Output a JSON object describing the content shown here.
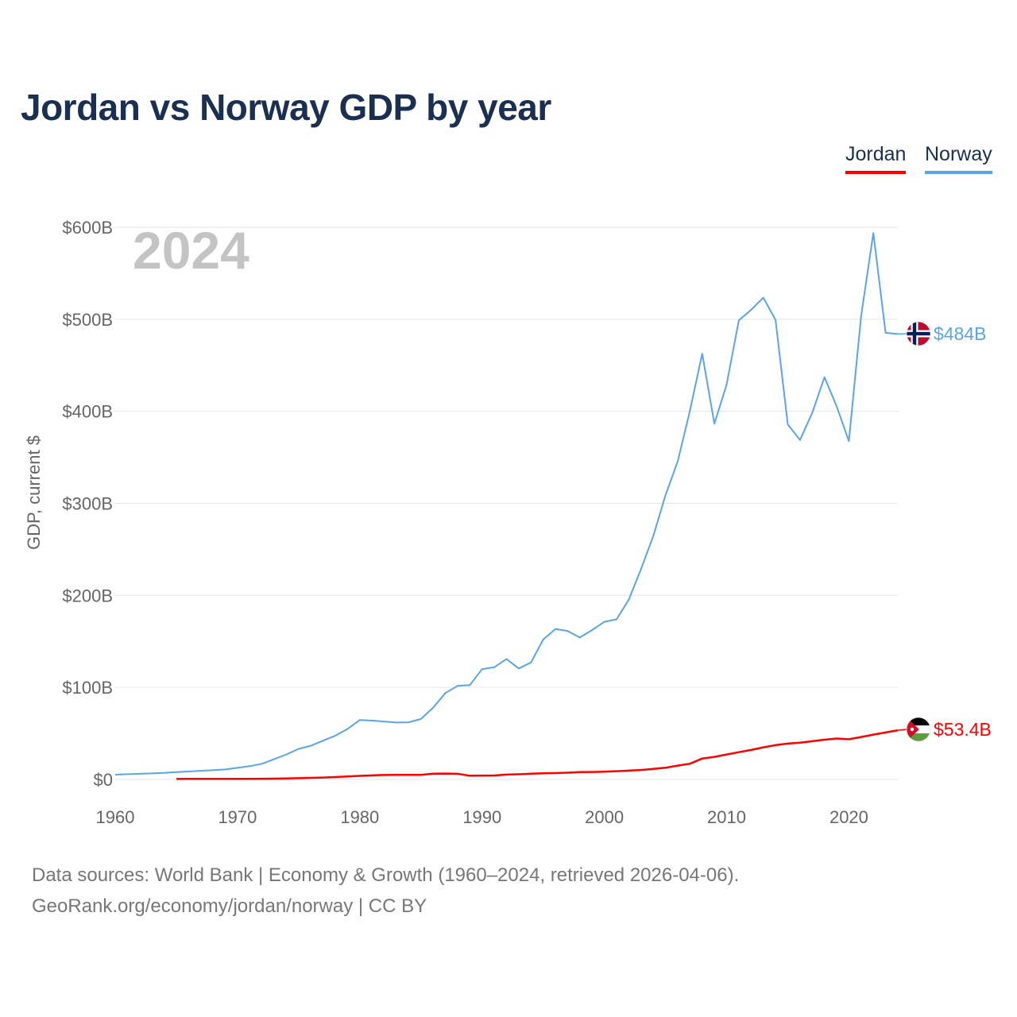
{
  "title": "Jordan vs Norway GDP by year",
  "legend": [
    {
      "label": "Jordan",
      "color": "#ff0000"
    },
    {
      "label": "Norway",
      "color": "#5aa5e6"
    }
  ],
  "footer": {
    "line1": "Data sources: World Bank | Economy & Growth (1960–2024, retrieved 2026-04-06).",
    "line2": "GeoRank.org/economy/jordan/norway | CC BY"
  },
  "chart_data": {
    "type": "line",
    "title": "Jordan vs Norway GDP by year",
    "xlabel": "",
    "ylabel": "GDP, current $",
    "xlim": [
      1960,
      2024
    ],
    "ylim": [
      0,
      600
    ],
    "y_unit": "billion USD",
    "x_ticks": [
      1960,
      1970,
      1980,
      1990,
      2000,
      2010,
      2020
    ],
    "x_tick_labels": [
      "1960",
      "1970",
      "1980",
      "1990",
      "2000",
      "2010",
      "2020"
    ],
    "y_ticks": [
      0,
      100,
      200,
      300,
      400,
      500,
      600
    ],
    "y_tick_labels": [
      "$0",
      "$100B",
      "$200B",
      "$300B",
      "$400B",
      "$500B",
      "$600B"
    ],
    "current_year_label": "2024",
    "grid": true,
    "legend_position": "top-right",
    "series": [
      {
        "name": "Jordan",
        "color": "#ff0000",
        "end_label": "$53.4B",
        "flag": "jordan",
        "x": [
          1965,
          1966,
          1967,
          1968,
          1969,
          1970,
          1971,
          1972,
          1973,
          1974,
          1975,
          1976,
          1977,
          1978,
          1979,
          1980,
          1981,
          1982,
          1983,
          1984,
          1985,
          1986,
          1987,
          1988,
          1989,
          1990,
          1991,
          1992,
          1993,
          1994,
          1995,
          1996,
          1997,
          1998,
          1999,
          2000,
          2001,
          2002,
          2003,
          2004,
          2005,
          2006,
          2007,
          2008,
          2009,
          2010,
          2011,
          2012,
          2013,
          2014,
          2015,
          2016,
          2017,
          2018,
          2019,
          2020,
          2021,
          2022,
          2023,
          2024
        ],
        "y": [
          0.5,
          0.6,
          0.6,
          0.6,
          0.7,
          0.6,
          0.6,
          0.8,
          0.9,
          1.1,
          1.4,
          1.7,
          2.1,
          2.6,
          3.3,
          3.9,
          4.4,
          4.8,
          5.0,
          5.0,
          4.9,
          6.2,
          6.4,
          6.1,
          4.1,
          4.2,
          4.3,
          5.3,
          5.6,
          6.2,
          6.7,
          6.9,
          7.3,
          7.9,
          8.1,
          8.5,
          9.0,
          9.6,
          10.3,
          11.5,
          12.7,
          15.0,
          17.1,
          22.7,
          24.5,
          27.1,
          29.6,
          32.0,
          34.9,
          37.3,
          38.9,
          39.9,
          41.5,
          43.2,
          44.5,
          43.7,
          46.1,
          48.7,
          51.0,
          53.4
        ]
      },
      {
        "name": "Norway",
        "color": "#5aa5e6",
        "end_label": "$484B",
        "flag": "norway",
        "x": [
          1960,
          1961,
          1962,
          1963,
          1964,
          1965,
          1966,
          1967,
          1968,
          1969,
          1970,
          1971,
          1972,
          1973,
          1974,
          1975,
          1976,
          1977,
          1978,
          1979,
          1980,
          1981,
          1982,
          1983,
          1984,
          1985,
          1986,
          1987,
          1988,
          1989,
          1990,
          1991,
          1992,
          1993,
          1994,
          1995,
          1996,
          1997,
          1998,
          1999,
          2000,
          2001,
          2002,
          2003,
          2004,
          2005,
          2006,
          2007,
          2008,
          2009,
          2010,
          2011,
          2012,
          2013,
          2014,
          2015,
          2016,
          2017,
          2018,
          2019,
          2020,
          2021,
          2022,
          2023,
          2024
        ],
        "y": [
          5.2,
          5.7,
          6.1,
          6.6,
          7.2,
          8.0,
          8.6,
          9.4,
          10.0,
          10.9,
          12.6,
          14.4,
          17.0,
          22.1,
          27.2,
          33.2,
          36.6,
          42.1,
          47.6,
          54.8,
          64.6,
          63.9,
          62.9,
          61.8,
          62.1,
          65.7,
          78.0,
          93.8,
          101.7,
          102.5,
          119.8,
          121.9,
          130.9,
          120.6,
          127.1,
          152.0,
          163.5,
          161.3,
          154.2,
          162.3,
          171.3,
          174.0,
          195.4,
          228.6,
          264.4,
          308.9,
          345.6,
          400.9,
          462.6,
          386.5,
          429.0,
          498.8,
          510.2,
          523.5,
          499.3,
          385.8,
          368.8,
          398.4,
          437.0,
          405.5,
          367.6,
          503.4,
          593.7,
          485.3,
          484.0
        ]
      }
    ]
  }
}
